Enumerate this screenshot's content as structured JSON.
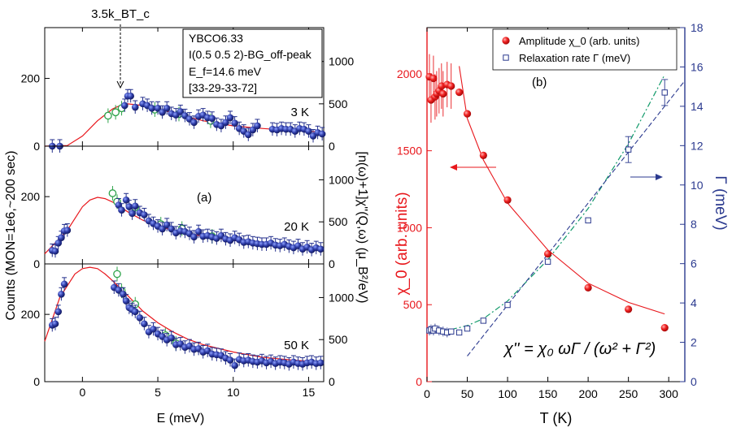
{
  "left_figure": {
    "panel_label": "(a)",
    "xlabel": "E (meV)",
    "ylabel_left": "Counts (MON=1e6,~200 sec)",
    "ylabel_right": "[n(ω)+1]χ''(Q,ω) (μ_B²/eV)",
    "tc_annotation": "3.5k_BT_c",
    "infobox": [
      "YBCO6.33",
      "I(0.5 0.5 2)-BG_off-peak",
      "E_f=14.6 meV",
      "[33-29-33-72]"
    ],
    "x_ticks": [
      "0",
      "5",
      "10",
      "15"
    ],
    "y_ticks_left": [
      "0",
      "200"
    ],
    "y_ticks_right": [
      "0",
      "500",
      "1000"
    ]
  },
  "chart_data": [
    {
      "type": "scatter",
      "title": "3 K",
      "xlabel": "E (meV)",
      "ylabel": "Counts (MON=1e6,~200 sec)",
      "xlim": [
        -2.5,
        16
      ],
      "ylim": [
        0,
        350
      ],
      "series": [
        {
          "name": "data (filled)",
          "x": [
            -2,
            -1.5,
            2.8,
            3,
            3.2,
            3.5,
            4,
            4.3,
            4.6,
            5,
            5.3,
            5.6,
            5.9,
            6.2,
            6.5,
            6.8,
            7.1,
            7.4,
            7.7,
            8,
            8.3,
            8.6,
            8.9,
            9.2,
            9.5,
            9.8,
            10.1,
            10.4,
            10.7,
            11,
            11.3,
            11.6,
            12.6,
            12.9,
            13.2,
            13.5,
            13.8,
            14.1,
            14.4,
            14.7,
            15,
            15.3,
            15.6,
            15.9
          ],
          "y": [
            0,
            0,
            120,
            148,
            148,
            115,
            125,
            120,
            112,
            112,
            100,
            112,
            96,
            92,
            102,
            90,
            80,
            70,
            88,
            92,
            84,
            82,
            64,
            60,
            70,
            84,
            68,
            52,
            44,
            34,
            48,
            60,
            50,
            48,
            52,
            50,
            50,
            44,
            52,
            50,
            44,
            30,
            40,
            36
          ]
        },
        {
          "name": "data (open)",
          "x": [
            1.7,
            2.2,
            2.6,
            4.8,
            6.4,
            8.5
          ],
          "y": [
            90,
            100,
            112,
            108,
            95,
            75
          ]
        },
        {
          "name": "fit",
          "x": [
            -2.5,
            -1,
            0,
            1,
            2,
            2.5,
            3,
            4,
            5,
            6,
            7,
            8,
            10,
            12,
            14,
            16
          ],
          "y": [
            0,
            2,
            30,
            75,
            110,
            120,
            125,
            120,
            110,
            98,
            86,
            75,
            60,
            52,
            46,
            42
          ]
        }
      ]
    },
    {
      "type": "scatter",
      "title": "20 K",
      "xlabel": "E (meV)",
      "ylabel": "Counts (MON=1e6,~200 sec)",
      "xlim": [
        -2.5,
        16
      ],
      "ylim": [
        0,
        350
      ],
      "series": [
        {
          "name": "data (filled)",
          "x": [
            -2,
            -1.8,
            -1.6,
            -1.4,
            -1.2,
            -1,
            2.4,
            2.6,
            2.9,
            3.1,
            3.3,
            3.5,
            3.8,
            4.1,
            4.4,
            4.7,
            5,
            5.3,
            5.6,
            5.9,
            6.2,
            6.5,
            6.8,
            7.1,
            7.4,
            7.7,
            8,
            8.3,
            8.6,
            8.9,
            9.2,
            9.5,
            9.8,
            10.1,
            10.4,
            10.7,
            11,
            11.3,
            11.6,
            11.9,
            12.2,
            12.5,
            12.8,
            13.1,
            13.4,
            13.7,
            14,
            14.3,
            14.6,
            14.9,
            15.2,
            15.5,
            15.8
          ],
          "y": [
            40,
            38,
            62,
            78,
            98,
            100,
            175,
            160,
            190,
            170,
            150,
            172,
            152,
            146,
            128,
            120,
            112,
            104,
            116,
            104,
            92,
            98,
            96,
            90,
            80,
            96,
            82,
            84,
            80,
            76,
            84,
            74,
            70,
            78,
            72,
            64,
            66,
            62,
            60,
            58,
            58,
            62,
            56,
            54,
            58,
            52,
            48,
            54,
            44,
            50,
            42,
            48,
            44
          ]
        },
        {
          "name": "data (open)",
          "x": [
            2,
            2.3,
            3.5,
            5.2,
            6.6,
            8.6
          ],
          "y": [
            210,
            185,
            168,
            118,
            105,
            82
          ]
        },
        {
          "name": "fit",
          "x": [
            -2.5,
            -1,
            0,
            0.5,
            1,
            1.5,
            2,
            2.5,
            3,
            4,
            5,
            6,
            7,
            8,
            10,
            12,
            14,
            16
          ],
          "y": [
            30,
            100,
            170,
            190,
            198,
            194,
            184,
            170,
            155,
            130,
            112,
            100,
            90,
            82,
            70,
            60,
            52,
            46
          ]
        }
      ]
    },
    {
      "type": "scatter",
      "title": "50 K",
      "xlabel": "E (meV)",
      "ylabel": "Counts (MON=1e6,~200 sec)",
      "xlim": [
        -2.5,
        16
      ],
      "ylim": [
        0,
        350
      ],
      "series": [
        {
          "name": "data (filled)",
          "x": [
            -2,
            -1.8,
            -1.6,
            -1.4,
            -1.2,
            2.1,
            2.4,
            2.7,
            2.9,
            3.1,
            3.3,
            3.5,
            3.8,
            4.1,
            4.4,
            4.7,
            5,
            5.3,
            5.6,
            5.9,
            6.2,
            6.5,
            6.8,
            7.1,
            7.4,
            7.7,
            8,
            8.3,
            8.6,
            8.9,
            9.2,
            9.5,
            9.8,
            10.1,
            10.4,
            10.7,
            11,
            11.3,
            11.6,
            11.9,
            12.2,
            12.5,
            12.8,
            13.1,
            13.4,
            13.7,
            14,
            14.3,
            14.6,
            14.9,
            15.2,
            15.5,
            15.8
          ],
          "y": [
            168,
            172,
            208,
            260,
            290,
            280,
            272,
            260,
            240,
            220,
            214,
            208,
            190,
            172,
            148,
            156,
            142,
            134,
            124,
            130,
            110,
            112,
            102,
            106,
            96,
            98,
            88,
            92,
            82,
            80,
            78,
            70,
            64,
            48,
            66,
            62,
            64,
            60,
            58,
            62,
            56,
            60,
            54,
            58,
            56,
            52,
            58,
            54,
            52,
            56,
            58,
            54,
            56
          ]
        },
        {
          "name": "data (open)",
          "x": [
            2.3,
            2.6,
            3.5,
            5.5,
            6.2
          ],
          "y": [
            320,
            270,
            230,
            138,
            114
          ]
        },
        {
          "name": "fit",
          "x": [
            -2.5,
            -1.5,
            -0.5,
            0,
            0.5,
            1,
            1.5,
            2,
            2.5,
            3,
            4,
            5,
            6,
            7,
            8,
            10,
            12,
            14,
            16
          ],
          "y": [
            120,
            250,
            320,
            336,
            340,
            336,
            320,
            300,
            278,
            256,
            210,
            175,
            148,
            126,
            110,
            88,
            72,
            64,
            58
          ]
        }
      ]
    },
    {
      "type": "scatter",
      "title": "(b)",
      "xlabel": "T (K)",
      "ylabel": "χ_0 (arb. units)",
      "ylabel_right": "Γ (meV)",
      "xlim": [
        0,
        320
      ],
      "ylim": [
        0,
        2300
      ],
      "ylim_right": [
        0,
        18
      ],
      "x_ticks": [
        "0",
        "50",
        "100",
        "150",
        "200",
        "250",
        "300"
      ],
      "y_ticks_left": [
        "0",
        "500",
        "1000",
        "1500",
        "2000"
      ],
      "y_ticks_right": [
        "0",
        "2",
        "4",
        "6",
        "8",
        "10",
        "12",
        "14",
        "16",
        "18"
      ],
      "legend": [
        {
          "label": "Amplitude χ_0 (arb. units)",
          "color": "#e8171c"
        },
        {
          "label": "Relaxation rate Γ (meV)",
          "color": "#2b3a8f"
        }
      ],
      "formula": "χ'' = χ₀ ωΓ / (ω² + Γ²)",
      "series": [
        {
          "name": "Amplitude χ_0",
          "axis": "left",
          "x": [
            3,
            5,
            8,
            10,
            12,
            15,
            18,
            20,
            25,
            30,
            40,
            50,
            70,
            100,
            150,
            200,
            250,
            295
          ],
          "y": [
            1980,
            1830,
            1970,
            1850,
            1870,
            1890,
            1920,
            1870,
            1930,
            1920,
            1880,
            1740,
            1470,
            1180,
            830,
            610,
            470,
            350
          ]
        },
        {
          "name": "Relaxation rate Γ",
          "axis": "right",
          "x": [
            3,
            5,
            8,
            10,
            15,
            20,
            25,
            30,
            40,
            50,
            70,
            100,
            150,
            200,
            250,
            295
          ],
          "y": [
            2.6,
            2.65,
            2.6,
            2.7,
            2.6,
            2.55,
            2.5,
            2.55,
            2.5,
            2.7,
            3.1,
            3.9,
            6.1,
            8.2,
            11.8,
            14.7
          ]
        },
        {
          "name": "χ_0 fit",
          "axis": "left",
          "x": [
            40,
            50,
            70,
            100,
            150,
            200,
            250,
            295
          ],
          "y": [
            2050,
            1710,
            1440,
            1160,
            855,
            640,
            515,
            440
          ]
        },
        {
          "name": "Γ fit (dash-dot)",
          "axis": "right",
          "x": [
            0,
            30,
            50,
            70,
            100,
            150,
            200,
            250,
            295
          ],
          "y": [
            2.55,
            2.65,
            2.85,
            3.2,
            4.1,
            6.2,
            8.8,
            12.1,
            15.6
          ]
        },
        {
          "name": "Γ linear (dashed)",
          "axis": "right",
          "x": [
            50,
            320
          ],
          "y": [
            1.3,
            15.3
          ]
        }
      ]
    }
  ],
  "colors": {
    "filled": "#232f8c",
    "open": "#2ea34a",
    "fit_a": "#e8171c",
    "red_text": "#e8171c",
    "blue_text": "#2b3a8f",
    "fit_green": "#119a6a"
  }
}
